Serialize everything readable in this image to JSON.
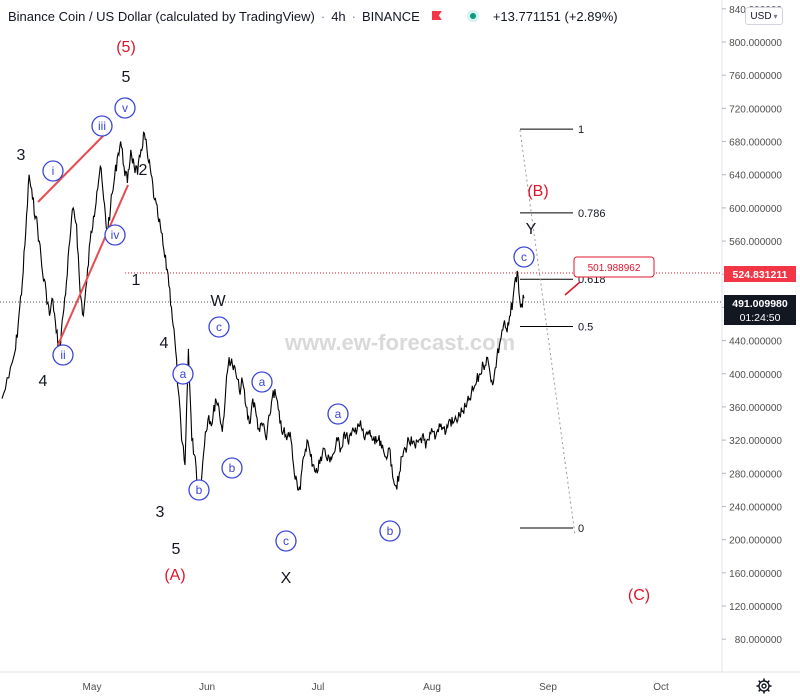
{
  "header": {
    "symbol": "Binance Coin / US Dollar (calculated by TradingView)",
    "interval": "4h",
    "exchange": "BINANCE",
    "change": "+13.771151 (+2.89%)"
  },
  "currency_selector": {
    "value": "USD",
    "icon": "chevron-down-icon"
  },
  "watermark": "www.ew-forecast.com",
  "price_labels": {
    "target": "524.831211",
    "last": "491.009980",
    "countdown": "01:24:50",
    "callout": "501.988962"
  },
  "colors": {
    "price_line": "#000000",
    "wave_red": "#e0152a",
    "wave_blue_circle": "#3a46d6",
    "target_label": "#f23645",
    "last_label": "#131722",
    "grid_text": "#4f4f4f"
  },
  "chart_data": {
    "type": "line",
    "x_ticks": [
      "May",
      "Jun",
      "Jul",
      "Aug",
      "Sep",
      "Oct"
    ],
    "y_ticks": [
      "80.000000",
      "120.000000",
      "160.000000",
      "200.000000",
      "240.000000",
      "280.000000",
      "320.000000",
      "360.000000",
      "400.000000",
      "440.000000",
      "480.000000",
      "520.000000",
      "560.000000",
      "600.000000",
      "640.000000",
      "680.000000",
      "720.000000",
      "760.000000",
      "800.000000",
      "840.000000"
    ],
    "ylim": [
      62,
      851
    ],
    "xlim": [
      0,
      183
    ],
    "grid": false,
    "series": [
      {
        "points": [
          [
            0,
            370
          ],
          [
            2,
            395
          ],
          [
            4,
            430
          ],
          [
            5,
            470
          ],
          [
            6,
            510
          ],
          [
            7,
            570
          ],
          [
            8,
            640
          ],
          [
            9,
            610
          ],
          [
            10,
            590
          ],
          [
            11,
            560
          ],
          [
            12,
            520
          ],
          [
            13,
            500
          ],
          [
            14,
            470
          ],
          [
            15,
            490
          ],
          [
            16,
            450
          ],
          [
            17,
            430
          ],
          [
            18,
            470
          ],
          [
            19,
            510
          ],
          [
            20,
            560
          ],
          [
            21,
            600
          ],
          [
            22,
            580
          ],
          [
            23,
            500
          ],
          [
            24,
            470
          ],
          [
            25,
            510
          ],
          [
            26,
            560
          ],
          [
            27,
            590
          ],
          [
            28,
            620
          ],
          [
            29,
            650
          ],
          [
            30,
            610
          ],
          [
            31,
            570
          ],
          [
            32,
            600
          ],
          [
            33,
            630
          ],
          [
            34,
            660
          ],
          [
            35,
            680
          ],
          [
            36,
            650
          ],
          [
            37,
            630
          ],
          [
            38,
            670
          ],
          [
            39,
            650
          ],
          [
            40,
            640
          ],
          [
            41,
            670
          ],
          [
            42,
            690
          ],
          [
            43,
            660
          ],
          [
            44,
            640
          ],
          [
            45,
            610
          ],
          [
            46,
            590
          ],
          [
            47,
            570
          ],
          [
            48,
            540
          ],
          [
            49,
            520
          ],
          [
            50,
            480
          ],
          [
            51,
            440
          ],
          [
            52,
            380
          ],
          [
            53,
            320
          ],
          [
            54,
            290
          ],
          [
            55,
            430
          ],
          [
            56,
            320
          ],
          [
            57,
            300
          ],
          [
            58,
            250
          ],
          [
            59,
            280
          ],
          [
            60,
            330
          ],
          [
            61,
            350
          ],
          [
            62,
            340
          ],
          [
            63,
            370
          ],
          [
            64,
            360
          ],
          [
            65,
            330
          ],
          [
            66,
            380
          ],
          [
            67,
            420
          ],
          [
            68,
            410
          ],
          [
            69,
            400
          ],
          [
            70,
            380
          ],
          [
            71,
            390
          ],
          [
            72,
            360
          ],
          [
            73,
            340
          ],
          [
            74,
            370
          ],
          [
            75,
            350
          ],
          [
            76,
            330
          ],
          [
            77,
            340
          ],
          [
            78,
            320
          ],
          [
            79,
            350
          ],
          [
            80,
            380
          ],
          [
            81,
            370
          ],
          [
            82,
            340
          ],
          [
            83,
            330
          ],
          [
            84,
            320
          ],
          [
            85,
            330
          ],
          [
            86,
            290
          ],
          [
            87,
            270
          ],
          [
            88,
            260
          ],
          [
            89,
            300
          ],
          [
            90,
            320
          ],
          [
            91,
            300
          ],
          [
            92,
            290
          ],
          [
            93,
            280
          ],
          [
            94,
            300
          ],
          [
            95,
            310
          ],
          [
            96,
            295
          ],
          [
            97,
            300
          ],
          [
            98,
            305
          ],
          [
            99,
            320
          ],
          [
            100,
            310
          ],
          [
            101,
            330
          ],
          [
            102,
            320
          ],
          [
            103,
            325
          ],
          [
            104,
            330
          ],
          [
            105,
            340
          ],
          [
            106,
            335
          ],
          [
            107,
            320
          ],
          [
            108,
            330
          ],
          [
            109,
            325
          ],
          [
            110,
            315
          ],
          [
            111,
            320
          ],
          [
            112,
            310
          ],
          [
            113,
            300
          ],
          [
            114,
            310
          ],
          [
            115,
            290
          ],
          [
            116,
            265
          ],
          [
            117,
            270
          ],
          [
            118,
            300
          ],
          [
            119,
            310
          ],
          [
            120,
            320
          ],
          [
            121,
            315
          ],
          [
            122,
            310
          ],
          [
            123,
            320
          ],
          [
            124,
            325
          ],
          [
            125,
            310
          ],
          [
            126,
            320
          ],
          [
            127,
            330
          ],
          [
            128,
            325
          ],
          [
            129,
            340
          ],
          [
            130,
            335
          ],
          [
            131,
            330
          ],
          [
            132,
            345
          ],
          [
            133,
            340
          ],
          [
            134,
            345
          ],
          [
            135,
            350
          ],
          [
            136,
            355
          ],
          [
            137,
            360
          ],
          [
            138,
            370
          ],
          [
            139,
            380
          ],
          [
            140,
            390
          ],
          [
            141,
            400
          ],
          [
            142,
            410
          ],
          [
            143,
            420
          ],
          [
            144,
            400
          ],
          [
            145,
            390
          ],
          [
            146,
            420
          ],
          [
            147,
            440
          ],
          [
            148,
            460
          ],
          [
            149,
            450
          ],
          [
            150,
            470
          ],
          [
            151,
            500
          ],
          [
            152,
            524
          ],
          [
            153,
            480
          ],
          [
            154,
            491
          ]
        ]
      }
    ]
  },
  "waves": {
    "red_labels": [
      "(5)",
      "(A)",
      "(B)",
      "(C)"
    ],
    "black_labels": [
      "5",
      "3",
      "4",
      "2",
      "1",
      "4",
      "3",
      "5",
      "W",
      "X",
      "Y"
    ],
    "circled_labels": [
      "i",
      "ii",
      "iii",
      "iv",
      "v",
      "a",
      "b",
      "c",
      "a",
      "b",
      "c",
      "a",
      "b",
      "c"
    ]
  },
  "fibonacci": {
    "levels": [
      {
        "label": "1",
        "price": 695
      },
      {
        "label": "0.786",
        "price": 594
      },
      {
        "label": "0.618",
        "price": 514
      },
      {
        "label": "0.5",
        "price": 457
      },
      {
        "label": "0",
        "price": 214
      }
    ]
  }
}
